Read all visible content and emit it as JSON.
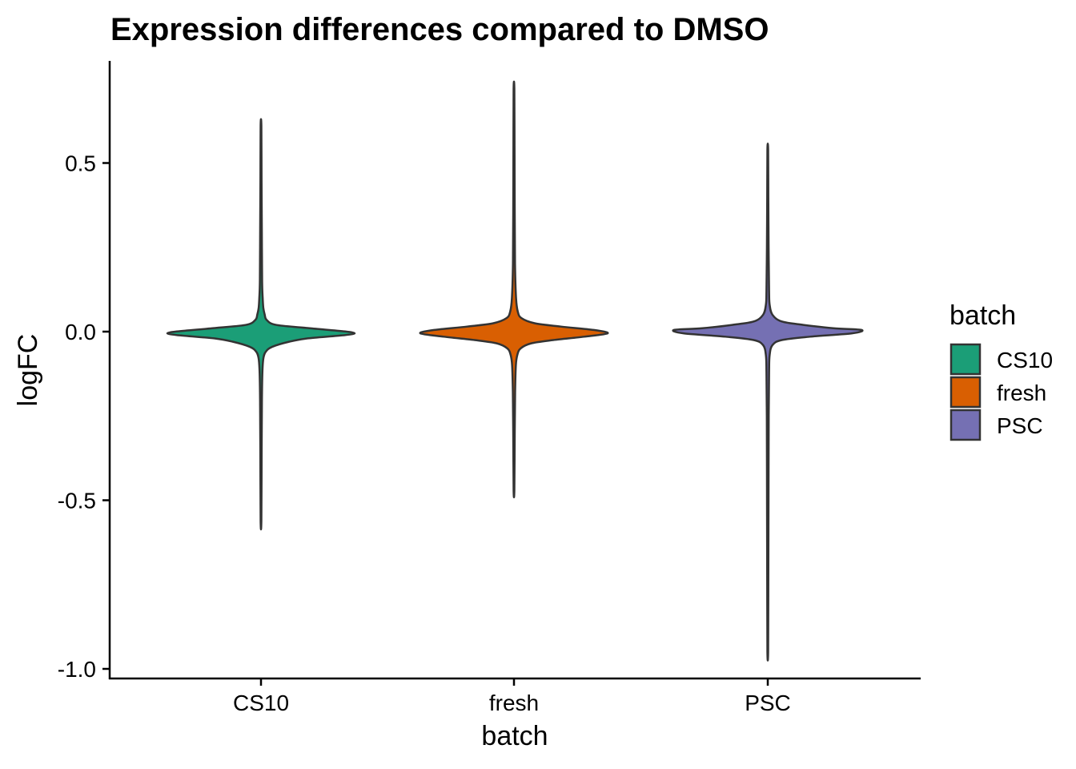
{
  "chart_data": {
    "type": "violin",
    "title": "Expression differences compared to DMSO",
    "xlabel": "batch",
    "ylabel": "logFC",
    "categories": [
      "CS10",
      "fresh",
      "PSC"
    ],
    "y_ticks": [
      0.5,
      0.0,
      -0.5,
      -1.0
    ],
    "y_tick_labels": [
      "0.5",
      "0.0",
      "-0.5",
      "-1.0"
    ],
    "ylim": [
      -1.03,
      0.8
    ],
    "grid": false,
    "legend": {
      "title": "batch",
      "position": "right",
      "items": [
        {
          "label": "CS10",
          "color": "#1b9e77"
        },
        {
          "label": "fresh",
          "color": "#d95f02"
        },
        {
          "label": "PSC",
          "color": "#7570b3"
        }
      ]
    },
    "series": [
      {
        "category": "CS10",
        "color": "#1b9e77",
        "min": -0.56,
        "max": 0.61,
        "profile": [
          [
            0.61,
            0.004
          ],
          [
            0.45,
            0.006
          ],
          [
            0.3,
            0.009
          ],
          [
            0.15,
            0.012
          ],
          [
            0.1,
            0.018
          ],
          [
            0.07,
            0.025
          ],
          [
            0.05,
            0.04
          ],
          [
            0.035,
            0.06
          ],
          [
            0.02,
            0.16
          ],
          [
            0.01,
            0.52
          ],
          [
            -0.005,
            1.0
          ],
          [
            -0.02,
            0.5
          ],
          [
            -0.03,
            0.3
          ],
          [
            -0.045,
            0.12
          ],
          [
            -0.06,
            0.05
          ],
          [
            -0.08,
            0.025
          ],
          [
            -0.12,
            0.015
          ],
          [
            -0.2,
            0.01
          ],
          [
            -0.35,
            0.007
          ],
          [
            -0.56,
            0.004
          ]
        ]
      },
      {
        "category": "fresh",
        "color": "#d95f02",
        "min": -0.47,
        "max": 0.72,
        "profile": [
          [
            0.72,
            0.004
          ],
          [
            0.55,
            0.006
          ],
          [
            0.35,
            0.008
          ],
          [
            0.2,
            0.011
          ],
          [
            0.1,
            0.022
          ],
          [
            0.06,
            0.04
          ],
          [
            0.04,
            0.08
          ],
          [
            0.025,
            0.22
          ],
          [
            0.015,
            0.5
          ],
          [
            0.005,
            0.85
          ],
          [
            -0.005,
            1.0
          ],
          [
            -0.015,
            0.75
          ],
          [
            -0.025,
            0.42
          ],
          [
            -0.035,
            0.18
          ],
          [
            -0.05,
            0.07
          ],
          [
            -0.07,
            0.035
          ],
          [
            -0.1,
            0.02
          ],
          [
            -0.18,
            0.012
          ],
          [
            -0.3,
            0.008
          ],
          [
            -0.47,
            0.004
          ]
        ]
      },
      {
        "category": "PSC",
        "color": "#7570b3",
        "min": -0.95,
        "max": 0.54,
        "profile": [
          [
            0.54,
            0.004
          ],
          [
            0.4,
            0.006
          ],
          [
            0.25,
            0.009
          ],
          [
            0.12,
            0.014
          ],
          [
            0.08,
            0.02
          ],
          [
            0.05,
            0.05
          ],
          [
            0.03,
            0.15
          ],
          [
            0.02,
            0.38
          ],
          [
            0.01,
            0.7
          ],
          [
            0.005,
            1.0
          ],
          [
            -0.005,
            0.9
          ],
          [
            -0.015,
            0.45
          ],
          [
            -0.025,
            0.15
          ],
          [
            -0.04,
            0.05
          ],
          [
            -0.07,
            0.02
          ],
          [
            -0.12,
            0.014
          ],
          [
            -0.25,
            0.01
          ],
          [
            -0.5,
            0.008
          ],
          [
            -0.75,
            0.006
          ],
          [
            -0.95,
            0.004
          ]
        ]
      }
    ]
  }
}
